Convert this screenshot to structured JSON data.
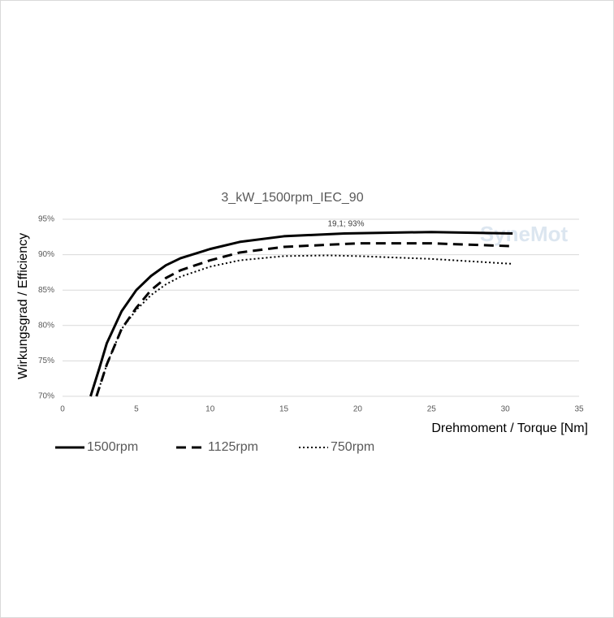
{
  "chart_data": {
    "type": "line",
    "title": "3_kW_1500rpm_IEC_90",
    "x_label": "Drehmoment / Torque [Nm]",
    "y_label": "Wirkungsgrad / Efficiency",
    "annotation": "19,1; 93%",
    "watermark": "SyneMot",
    "xlim": [
      0,
      35
    ],
    "xticks": [
      0,
      5,
      10,
      15,
      20,
      25,
      30,
      35
    ],
    "ylim": [
      70,
      95
    ],
    "yticks": [
      {
        "value": 70,
        "label": "70%"
      },
      {
        "value": 75,
        "label": "75%"
      },
      {
        "value": 80,
        "label": "80%"
      },
      {
        "value": 85,
        "label": "85%"
      },
      {
        "value": 90,
        "label": "90%"
      },
      {
        "value": 95,
        "label": "95%"
      }
    ],
    "grid": true,
    "series": [
      {
        "name": "1500rpm",
        "color": "#000000",
        "dash": "solid",
        "x": [
          1.9,
          2.5,
          3,
          4,
          5,
          6,
          7,
          8,
          10,
          12,
          15,
          19.1,
          25,
          30.5
        ],
        "values": [
          70,
          74,
          77.5,
          82,
          85,
          87,
          88.5,
          89.5,
          90.8,
          91.8,
          92.6,
          93,
          93.2,
          93
        ]
      },
      {
        "name": "1125rpm",
        "color": "#000000",
        "dash": "dashed",
        "x": [
          2.3,
          3,
          4,
          5,
          6,
          7,
          8,
          10,
          12,
          15,
          20,
          25,
          30.5
        ],
        "values": [
          70,
          74.5,
          79.5,
          82.5,
          85,
          86.7,
          87.8,
          89.2,
          90.3,
          91.1,
          91.6,
          91.6,
          91.2
        ]
      },
      {
        "name": "750rpm",
        "color": "#000000",
        "dash": "dotted",
        "x": [
          2.3,
          3,
          4,
          5,
          6,
          7,
          8,
          10,
          12,
          15,
          18,
          20,
          25,
          30.5
        ],
        "values": [
          70,
          74.5,
          79.5,
          82.2,
          84.3,
          85.8,
          86.9,
          88.3,
          89.2,
          89.8,
          89.9,
          89.8,
          89.4,
          88.7
        ]
      }
    ]
  }
}
